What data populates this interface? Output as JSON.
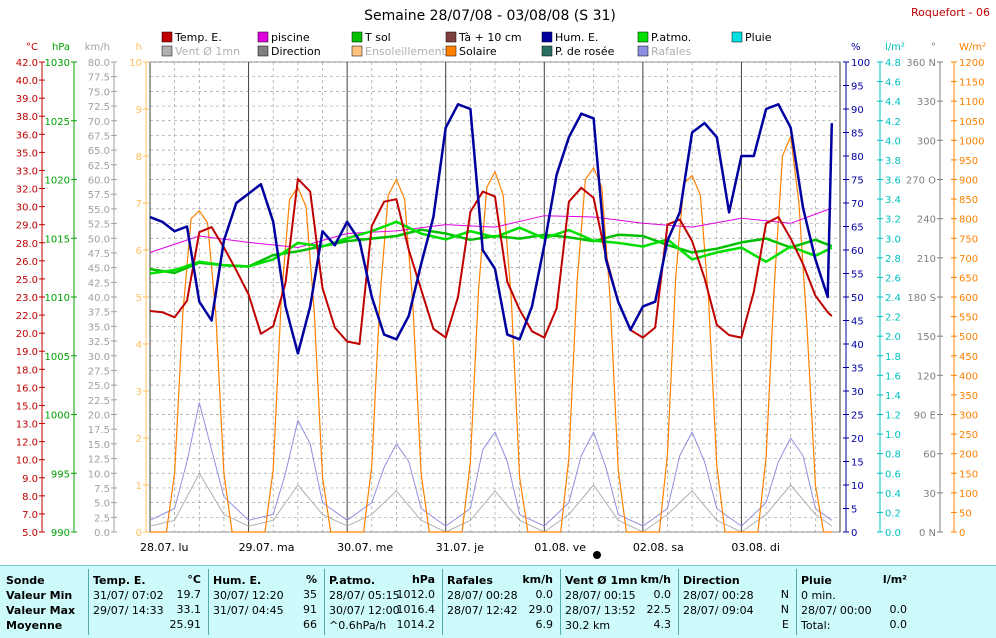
{
  "header": {
    "title": "Semaine 28/07/08 - 03/08/08 (S 31)",
    "station": "Roquefort - 06"
  },
  "legend": [
    {
      "label": "Temp. E.",
      "color": "#c00000"
    },
    {
      "label": "piscine",
      "color": "#e000e0"
    },
    {
      "label": "T sol",
      "color": "#00c000"
    },
    {
      "label": "Tà + 10 cm",
      "color": "#804040"
    },
    {
      "label": "Hum. E.",
      "color": "#0000a0"
    },
    {
      "label": "P.atmo.",
      "color": "#00e000"
    },
    {
      "label": "Pluie",
      "color": "#00e0e0"
    },
    {
      "label": "Vent Ø 1mn",
      "color": "#b0b0b0"
    },
    {
      "label": "Direction",
      "color": "#808080"
    },
    {
      "label": "Ensoleillement",
      "color": "#ffc080"
    },
    {
      "label": "Solaire",
      "color": "#ff8000"
    },
    {
      "label": "P. de rosée",
      "color": "#2a7060"
    },
    {
      "label": "Rafales",
      "color": "#9090e0"
    }
  ],
  "axes": {
    "temp": {
      "unit": "°C",
      "color": "#c00000",
      "ticks": [
        "42.0",
        "40.0",
        "39.0",
        "38.0",
        "36.0",
        "35.0",
        "33.0",
        "32.0",
        "30.0",
        "29.0",
        "28.0",
        "26.0",
        "25.0",
        "23.0",
        "22.0",
        "20.0",
        "19.0",
        "18.0",
        "16.0",
        "15.0",
        "13.0",
        "12.0",
        "10.0",
        "9.0",
        "8.0",
        "7.0",
        "5.0"
      ]
    },
    "pressure": {
      "unit": "hPa",
      "color": "#00a000",
      "ticks": [
        "1030",
        "1025",
        "1020",
        "1015",
        "1010",
        "1005",
        "1000",
        "995",
        "990"
      ]
    },
    "wind": {
      "unit": "km/h",
      "color": "#a0a0a0",
      "ticks": [
        "80.0",
        "77.5",
        "75.0",
        "72.5",
        "70.0",
        "67.5",
        "65.0",
        "62.5",
        "60.0",
        "57.5",
        "55.0",
        "52.5",
        "50.0",
        "47.5",
        "45.0",
        "42.5",
        "40.0",
        "37.5",
        "35.0",
        "32.5",
        "30.0",
        "27.5",
        "25.0",
        "22.5",
        "20.0",
        "17.5",
        "15.0",
        "12.5",
        "10.0",
        "7.5",
        "5.0",
        "2.5",
        "0.0"
      ]
    },
    "sun": {
      "unit": "h",
      "color": "#ffc060",
      "ticks": [
        "10",
        "9",
        "8",
        "7",
        "6",
        "5",
        "4",
        "3",
        "2",
        "1",
        "0"
      ]
    },
    "humidity": {
      "unit": "%",
      "color": "#0000a0",
      "ticks": [
        "100",
        "95",
        "90",
        "85",
        "80",
        "75",
        "70",
        "65",
        "60",
        "55",
        "50",
        "45",
        "40",
        "35",
        "30",
        "25",
        "20",
        "15",
        "10",
        "5",
        "0"
      ]
    },
    "rain": {
      "unit": "l/m²",
      "color": "#00c0c0",
      "ticks": [
        "4.8",
        "4.6",
        "4.4",
        "4.2",
        "4.0",
        "3.8",
        "3.6",
        "3.4",
        "3.2",
        "3.0",
        "2.8",
        "2.6",
        "2.4",
        "2.2",
        "2.0",
        "1.8",
        "1.6",
        "1.4",
        "1.2",
        "1.0",
        "0.8",
        "0.6",
        "0.4",
        "0.2",
        "0.0"
      ]
    },
    "direction": {
      "unit": "°",
      "color": "#808080",
      "ticks": [
        "360 N",
        "330",
        "300",
        "270 O",
        "240",
        "210",
        "180 S",
        "150",
        "120",
        "90 E",
        "60",
        "30",
        "0 N"
      ]
    },
    "solar": {
      "unit": "W/m²",
      "color": "#ff8000",
      "ticks": [
        "1200",
        "1150",
        "1100",
        "1050",
        "1000",
        "950",
        "900",
        "850",
        "800",
        "750",
        "700",
        "650",
        "600",
        "550",
        "500",
        "450",
        "400",
        "350",
        "300",
        "250",
        "200",
        "150",
        "100",
        "50",
        "0"
      ]
    }
  },
  "chart_data": {
    "type": "line",
    "title": "Semaine 28/07/08 - 03/08/08 (S 31)",
    "x_labels": [
      "28.07.  lu",
      "29.07.  ma",
      "30.07.  me",
      "31.07.  je",
      "01.08.  ve",
      "02.08.  sa",
      "03.08.  di"
    ],
    "grid": true,
    "series": [
      {
        "name": "Temp. E.",
        "unit": "°C",
        "x_hours": [
          0,
          3,
          6,
          9,
          12,
          15,
          18,
          21,
          24,
          27,
          30,
          33,
          36,
          39,
          42,
          45,
          48,
          51,
          54,
          57,
          60,
          63,
          66,
          69,
          72,
          75,
          78,
          81,
          84,
          87,
          90,
          93,
          96,
          99,
          102,
          105,
          108,
          111,
          114,
          117,
          120,
          123,
          126,
          129,
          132,
          135,
          138,
          141,
          144,
          147,
          150,
          153,
          156,
          159,
          162,
          165,
          166
        ],
        "values": [
          22.4,
          22.3,
          21.9,
          23.2,
          28.6,
          29.0,
          27.4,
          25.6,
          23.7,
          20.6,
          21.2,
          24.6,
          32.8,
          31.8,
          24.2,
          21.1,
          20.0,
          19.8,
          29.1,
          31.0,
          31.2,
          27.2,
          24.1,
          21.0,
          20.3,
          23.5,
          30.2,
          31.8,
          31.4,
          24.7,
          22.5,
          20.8,
          20.3,
          22.6,
          31.0,
          32.1,
          31.3,
          26.7,
          23.1,
          20.9,
          20.3,
          21.1,
          29.2,
          29.6,
          27.9,
          25.0,
          21.3,
          20.5,
          20.3,
          23.9,
          29.3,
          29.8,
          28.1,
          26.1,
          23.6,
          22.3,
          22.0
        ]
      },
      {
        "name": "piscine",
        "unit": "°C",
        "x_hours": [
          0,
          12,
          24,
          36,
          48,
          60,
          72,
          84,
          96,
          108,
          120,
          132,
          144,
          156,
          166
        ],
        "values": [
          27.0,
          28.3,
          27.8,
          27.4,
          28.5,
          28.7,
          29.2,
          29.0,
          29.9,
          29.8,
          29.3,
          29.0,
          29.7,
          29.3,
          30.5
        ]
      },
      {
        "name": "T sol",
        "unit": "°C",
        "x_hours": [
          0,
          6,
          12,
          18,
          24,
          30,
          36,
          42,
          48,
          54,
          60,
          66,
          72,
          78,
          84,
          90,
          96,
          102,
          108,
          114,
          120,
          126,
          132,
          138,
          144,
          150,
          156,
          162,
          166
        ],
        "values": [
          25.7,
          25.4,
          26.2,
          26.0,
          25.9,
          26.8,
          27.1,
          27.5,
          27.9,
          28.1,
          28.3,
          28.8,
          28.5,
          28.0,
          28.3,
          28.1,
          28.4,
          28.2,
          27.9,
          28.4,
          28.3,
          27.6,
          27.0,
          27.3,
          27.8,
          28.1,
          27.4,
          28.0,
          27.5
        ]
      },
      {
        "name": "Hum. E.",
        "unit": "%",
        "x_hours": [
          0,
          3,
          6,
          9,
          12,
          15,
          18,
          21,
          24,
          27,
          30,
          33,
          36,
          39,
          42,
          45,
          48,
          51,
          54,
          57,
          60,
          63,
          66,
          69,
          72,
          75,
          78,
          81,
          84,
          87,
          90,
          93,
          96,
          99,
          102,
          105,
          108,
          111,
          114,
          117,
          120,
          123,
          126,
          129,
          132,
          135,
          138,
          141,
          144,
          147,
          150,
          153,
          156,
          159,
          162,
          165,
          166
        ],
        "values": [
          67,
          66,
          64,
          65,
          49,
          45,
          62,
          70,
          72,
          74,
          66,
          48,
          38,
          48,
          64,
          61,
          66,
          62,
          50,
          42,
          41,
          46,
          57,
          67,
          86,
          91,
          90,
          60,
          56,
          42,
          41,
          48,
          61,
          76,
          84,
          89,
          88,
          58,
          49,
          43,
          48,
          49,
          62,
          68,
          85,
          87,
          84,
          68,
          80,
          80,
          90,
          91,
          86,
          69,
          58,
          50,
          87
        ]
      },
      {
        "name": "P.atmo.",
        "unit": "hPa",
        "x_hours": [
          0,
          6,
          12,
          18,
          24,
          30,
          36,
          42,
          48,
          54,
          60,
          66,
          72,
          78,
          84,
          90,
          96,
          102,
          108,
          114,
          120,
          126,
          132,
          138,
          144,
          150,
          156,
          162,
          166
        ],
        "values": [
          1012.0,
          1012.3,
          1013.0,
          1012.7,
          1012.6,
          1013.2,
          1014.6,
          1014.3,
          1015.0,
          1015.6,
          1016.4,
          1015.4,
          1014.9,
          1015.6,
          1015.1,
          1015.9,
          1015.0,
          1015.7,
          1014.8,
          1014.6,
          1014.3,
          1014.9,
          1013.2,
          1013.8,
          1014.2,
          1013.0,
          1014.3,
          1013.5,
          1014.2
        ]
      },
      {
        "name": "Solaire",
        "unit": "W/m²",
        "x_hours": [
          0,
          4,
          6,
          8,
          10,
          12,
          14,
          16,
          18,
          20,
          24,
          28,
          30,
          32,
          34,
          36,
          38,
          40,
          42,
          44,
          48,
          52,
          54,
          56,
          58,
          60,
          62,
          64,
          66,
          68,
          72,
          76,
          78,
          80,
          82,
          84,
          86,
          88,
          90,
          92,
          96,
          100,
          102,
          104,
          106,
          108,
          110,
          112,
          114,
          116,
          120,
          124,
          126,
          128,
          130,
          132,
          134,
          136,
          138,
          140,
          144,
          148,
          150,
          152,
          154,
          156,
          158,
          160,
          162,
          164,
          166
        ],
        "values": [
          0,
          0,
          150,
          560,
          800,
          820,
          790,
          560,
          150,
          0,
          0,
          0,
          160,
          600,
          850,
          880,
          830,
          560,
          140,
          0,
          0,
          0,
          170,
          600,
          860,
          900,
          850,
          580,
          150,
          0,
          0,
          0,
          180,
          620,
          880,
          920,
          860,
          590,
          140,
          0,
          0,
          0,
          190,
          640,
          900,
          930,
          880,
          600,
          160,
          0,
          0,
          0,
          200,
          650,
          890,
          910,
          860,
          590,
          170,
          0,
          0,
          0,
          190,
          630,
          960,
          1010,
          840,
          520,
          120,
          0,
          0
        ]
      },
      {
        "name": "Rafales",
        "unit": "km/h",
        "x_hours": [
          0,
          6,
          9,
          12,
          15,
          18,
          24,
          30,
          33,
          36,
          39,
          42,
          48,
          54,
          57,
          60,
          63,
          66,
          72,
          78,
          81,
          84,
          87,
          90,
          96,
          102,
          105,
          108,
          111,
          114,
          120,
          126,
          129,
          132,
          135,
          138,
          144,
          150,
          153,
          156,
          159,
          162,
          166
        ],
        "values": [
          2,
          4,
          12,
          22,
          14,
          6,
          2,
          3,
          10,
          19,
          15,
          5,
          2,
          5,
          11,
          15,
          12,
          4,
          1,
          4,
          14,
          17,
          12,
          3,
          1,
          5,
          13,
          17,
          11,
          3,
          1,
          4,
          13,
          17,
          12,
          4,
          1,
          5,
          12,
          16,
          13,
          4,
          2
        ]
      },
      {
        "name": "Vent Ø 1mn",
        "unit": "km/h",
        "x_hours": [
          0,
          6,
          12,
          18,
          24,
          30,
          36,
          42,
          48,
          54,
          60,
          66,
          72,
          78,
          84,
          90,
          96,
          102,
          108,
          114,
          120,
          126,
          132,
          138,
          144,
          150,
          156,
          162,
          166
        ],
        "values": [
          1,
          2,
          10,
          3,
          1,
          2,
          8,
          3,
          1,
          3,
          7,
          2,
          0,
          2,
          7,
          2,
          0,
          3,
          8,
          2,
          0,
          3,
          7,
          2,
          0,
          3,
          8,
          3,
          1
        ]
      }
    ],
    "rain_total": 0.0
  },
  "stats": {
    "sonde": {
      "title": "Sonde",
      "rows": [
        "Valeur Min",
        "Valeur Max",
        "Moyenne"
      ]
    },
    "temp": {
      "title": "Temp. E.",
      "unit": "°C",
      "rows": [
        [
          "31/07/ 07:02",
          "19.7"
        ],
        [
          "29/07/ 14:33",
          "33.1"
        ],
        [
          "",
          "25.91"
        ]
      ]
    },
    "hum": {
      "title": "Hum. E.",
      "unit": "%",
      "rows": [
        [
          "30/07/ 12:20",
          "35"
        ],
        [
          "31/07/ 04:45",
          "91"
        ],
        [
          "",
          "66"
        ]
      ]
    },
    "patmo": {
      "title": "P.atmo.",
      "unit": "hPa",
      "rows": [
        [
          "28/07/ 05:15",
          "1012.0"
        ],
        [
          "30/07/ 12:00",
          "1016.4"
        ],
        [
          "^0.6hPa/h",
          "1014.2"
        ]
      ]
    },
    "rafales": {
      "title": "Rafales",
      "unit": "km/h",
      "rows": [
        [
          "28/07/ 00:28",
          "0.0"
        ],
        [
          "28/07/ 12:42",
          "29.0"
        ],
        [
          "",
          "6.9"
        ]
      ]
    },
    "vent": {
      "title": "Vent Ø 1mn",
      "unit": "km/h",
      "rows": [
        [
          "28/07/ 00:15",
          "0.0"
        ],
        [
          "28/07/ 13:52",
          "22.5"
        ],
        [
          "30.2 km",
          "4.3"
        ]
      ]
    },
    "direction": {
      "title": "Direction",
      "rows": [
        [
          "28/07/ 00:28",
          "N"
        ],
        [
          "28/07/ 09:04",
          "N"
        ],
        [
          "",
          "E"
        ]
      ]
    },
    "pluie": {
      "title": "Pluie",
      "unit": "l/m²",
      "rows": [
        [
          "0 min.",
          ""
        ],
        [
          "28/07/ 00:00",
          "0.0"
        ],
        [
          "Total:",
          "0.0"
        ]
      ]
    }
  }
}
